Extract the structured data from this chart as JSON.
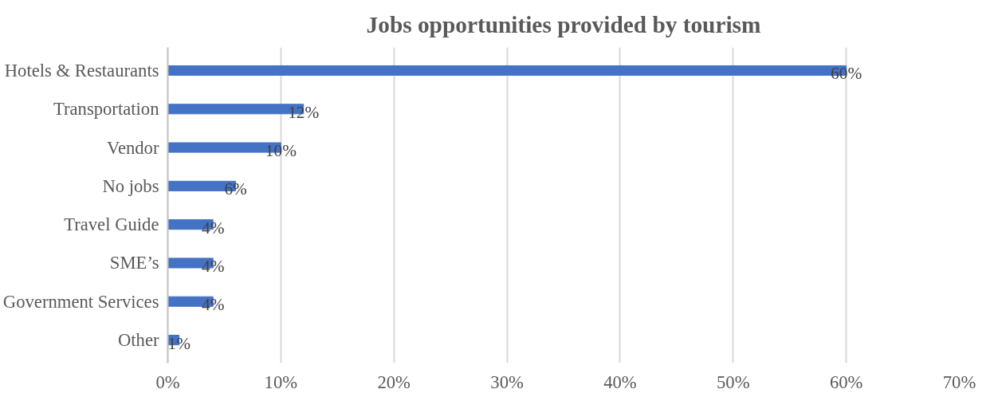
{
  "chart_data": {
    "type": "bar",
    "orientation": "horizontal",
    "title": "Jobs opportunities provided by tourism",
    "categories": [
      "Hotels & Restaurants",
      "Transportation",
      "Vendor",
      "No jobs",
      "Travel Guide",
      "SME’s",
      "Government Services",
      "Other"
    ],
    "values": [
      60,
      12,
      10,
      6,
      4,
      4,
      4,
      1
    ],
    "value_labels": [
      "60%",
      "12%",
      "10%",
      "6%",
      "4%",
      "4%",
      "4%",
      "1%"
    ],
    "color": "#4472c4",
    "xlim": [
      0,
      70
    ],
    "xticks": [
      {
        "value": 0,
        "label": "0%"
      },
      {
        "value": 10,
        "label": "10%"
      },
      {
        "value": 20,
        "label": "20%"
      },
      {
        "value": 30,
        "label": "30%"
      },
      {
        "value": 40,
        "label": "40%"
      },
      {
        "value": 50,
        "label": "50%"
      },
      {
        "value": 60,
        "label": "60%"
      },
      {
        "value": 70,
        "label": "70%"
      }
    ],
    "grid": "x"
  }
}
